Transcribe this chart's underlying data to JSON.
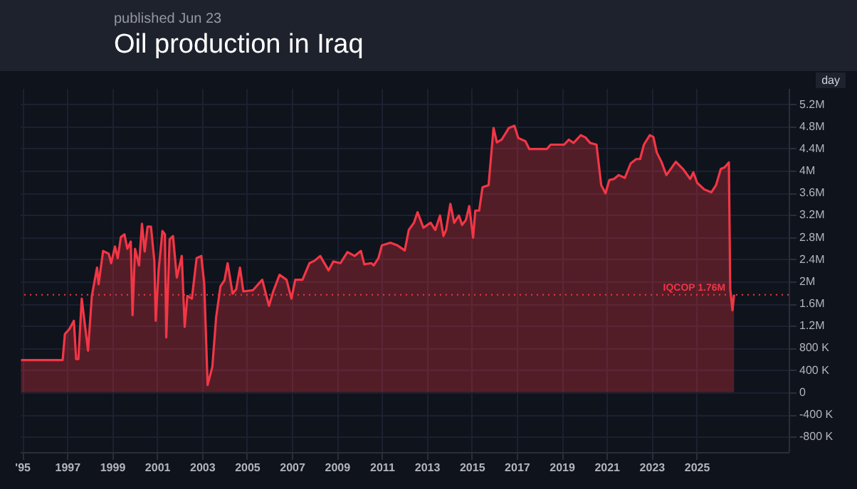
{
  "chart_data": {
    "type": "area",
    "title": "Oil production in Iraq",
    "subtitle": "published Jun 23",
    "annotations": [
      "day"
    ],
    "x": [
      1994.95,
      1996.8,
      1996.9,
      1997.1,
      1997.3,
      1997.4,
      1997.5,
      1997.65,
      1997.93,
      1998.1,
      1998.33,
      1998.4,
      1998.6,
      1998.85,
      1998.96,
      1999.13,
      1999.25,
      1999.39,
      1999.55,
      1999.68,
      1999.83,
      1999.91,
      2000.02,
      2000.2,
      2000.33,
      2000.45,
      2000.58,
      2000.73,
      2000.88,
      2000.94,
      2001.07,
      2001.24,
      2001.35,
      2001.41,
      2001.56,
      2001.71,
      2001.88,
      2002.1,
      2002.23,
      2002.35,
      2002.55,
      2002.76,
      2002.97,
      2003.1,
      2003.25,
      2003.46,
      2003.63,
      2003.82,
      2004.0,
      2004.14,
      2004.36,
      2004.52,
      2004.69,
      2004.84,
      2005.26,
      2005.68,
      2005.98,
      2006.17,
      2006.45,
      2006.76,
      2006.98,
      2007.15,
      2007.47,
      2007.78,
      2007.99,
      2008.26,
      2008.63,
      2008.84,
      2009.16,
      2009.47,
      2009.79,
      2010.07,
      2010.22,
      2010.53,
      2010.64,
      2010.85,
      2011.0,
      2011.38,
      2011.7,
      2012.02,
      2012.2,
      2012.43,
      2012.59,
      2012.85,
      2013.17,
      2013.38,
      2013.59,
      2013.74,
      2013.86,
      2014.05,
      2014.22,
      2014.43,
      2014.57,
      2014.74,
      2014.89,
      2015.06,
      2015.16,
      2015.33,
      2015.48,
      2015.75,
      2015.97,
      2016.12,
      2016.33,
      2016.65,
      2016.9,
      2017.07,
      2017.39,
      2017.56,
      2018.34,
      2018.51,
      2018.87,
      2019.11,
      2019.32,
      2019.53,
      2019.85,
      2020.06,
      2020.27,
      2020.55,
      2020.76,
      2020.95,
      2021.12,
      2021.33,
      2021.54,
      2021.81,
      2022.07,
      2022.32,
      2022.49,
      2022.66,
      2022.92,
      2023.08,
      2023.23,
      2023.44,
      2023.66,
      2024.08,
      2024.4,
      2024.72,
      2024.86,
      2025.03,
      2025.35,
      2025.66,
      2025.87,
      2026.08,
      2026.25,
      2026.44,
      2026.5,
      2026.6,
      2026.67
    ],
    "series": [
      {
        "color": "#f23645",
        "values": [
          580000,
          580000,
          1050000,
          1140000,
          1290000,
          600000,
          600000,
          1690000,
          750000,
          1740000,
          2250000,
          1950000,
          2550000,
          2500000,
          2330000,
          2630000,
          2420000,
          2800000,
          2850000,
          2590000,
          2720000,
          1390000,
          2590000,
          2290000,
          3040000,
          2540000,
          2990000,
          2990000,
          2370000,
          1290000,
          2200000,
          2910000,
          2850000,
          990000,
          2760000,
          2820000,
          2070000,
          2460000,
          1180000,
          1740000,
          1690000,
          2420000,
          2460000,
          1950000,
          130000,
          460000,
          1360000,
          1910000,
          2020000,
          2330000,
          1780000,
          1860000,
          2250000,
          1820000,
          1840000,
          2030000,
          1560000,
          1820000,
          2120000,
          2030000,
          1690000,
          2030000,
          2030000,
          2330000,
          2370000,
          2460000,
          2200000,
          2360000,
          2330000,
          2530000,
          2460000,
          2550000,
          2310000,
          2330000,
          2290000,
          2420000,
          2650000,
          2700000,
          2650000,
          2560000,
          2930000,
          3060000,
          3250000,
          2970000,
          3060000,
          2930000,
          3190000,
          2820000,
          2930000,
          3400000,
          3060000,
          3190000,
          3020000,
          3110000,
          3360000,
          2790000,
          3280000,
          3280000,
          3700000,
          3740000,
          4770000,
          4510000,
          4560000,
          4770000,
          4810000,
          4590000,
          4530000,
          4390000,
          4390000,
          4470000,
          4470000,
          4470000,
          4560000,
          4500000,
          4640000,
          4600000,
          4500000,
          4470000,
          3740000,
          3590000,
          3830000,
          3850000,
          3920000,
          3870000,
          4130000,
          4210000,
          4210000,
          4470000,
          4640000,
          4610000,
          4330000,
          4160000,
          3920000,
          4160000,
          4030000,
          3850000,
          3970000,
          3780000,
          3660000,
          3610000,
          3740000,
          4030000,
          4060000,
          4150000,
          1860000,
          1480000,
          1760000
        ]
      }
    ],
    "xlim": [
      1994.9,
      2029.1
    ],
    "xticks": [
      {
        "value": 1995,
        "label": "'95"
      },
      1997,
      1999,
      2001,
      2003,
      2005,
      2007,
      2009,
      2011,
      2013,
      2015,
      2017,
      2019,
      2021,
      2023,
      2025
    ],
    "ylim": [
      -1080000,
      5490000
    ],
    "yticks": [
      {
        "value": -800000,
        "label": "-800 K"
      },
      {
        "value": -400000,
        "label": "-400 K"
      },
      0,
      {
        "value": 400000,
        "label": "400 K"
      },
      {
        "value": 800000,
        "label": "800 K"
      },
      {
        "value": 1200000,
        "label": "1.2M"
      },
      {
        "value": 1600000,
        "label": "1.6M"
      },
      {
        "value": 2000000,
        "label": "2M"
      },
      {
        "value": 2400000,
        "label": "2.4M"
      },
      {
        "value": 2800000,
        "label": "2.8M"
      },
      {
        "value": 3200000,
        "label": "3.2M"
      },
      {
        "value": 3600000,
        "label": "3.6M"
      },
      {
        "value": 4000000,
        "label": "4M"
      },
      {
        "value": 4400000,
        "label": "4.4M"
      },
      {
        "value": 4800000,
        "label": "4.8M"
      },
      {
        "value": 5200000,
        "label": "5.2M"
      }
    ],
    "ref_lines": [
      {
        "axis": "y",
        "value": 1760000,
        "label": "IQCOP 1.76M",
        "color": "#f23645",
        "line_style": "dotted"
      }
    ],
    "grid": true
  }
}
